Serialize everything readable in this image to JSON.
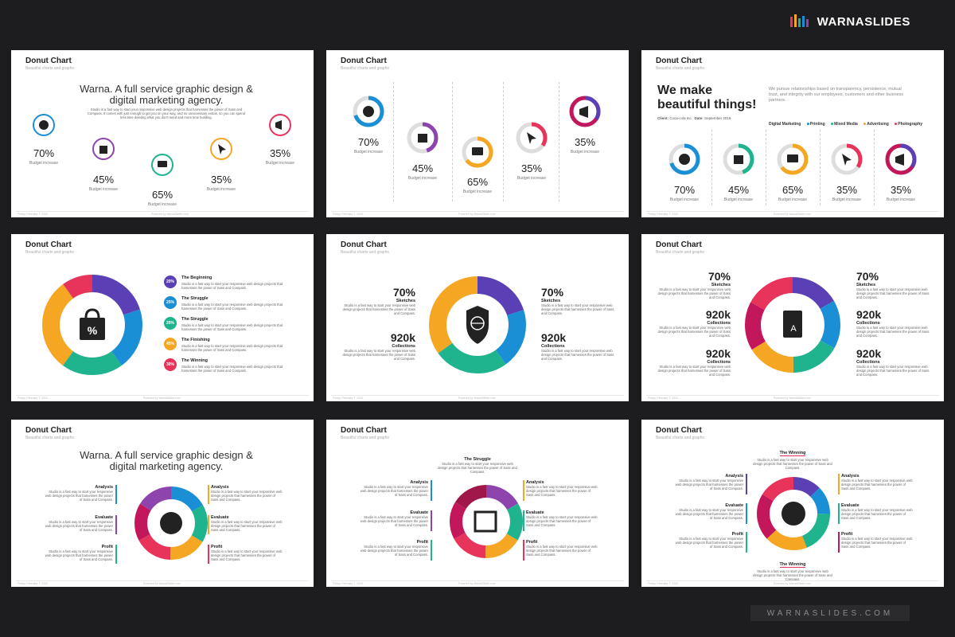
{
  "brand": {
    "name": "WARNASLIDES",
    "footer": "WARNASLIDES.COM"
  },
  "common": {
    "title": "Donut Chart",
    "subtitle": "Beautiful charts and graphs",
    "date": "Friday, February 7, 2020",
    "credit": "Powered by WarnaSlides.com"
  },
  "colors": {
    "blue": "#1a8fd6",
    "indigo": "#5b3fb5",
    "green": "#1fb38e",
    "orange": "#f5a623",
    "red": "#e8345b",
    "magenta": "#c2185b",
    "purple": "#8e44ad",
    "gray": "#bcbcbc"
  },
  "s1": {
    "heading": "Warna. A full service graphic design & digital marketing agency.",
    "body": "Studio is a fast way to start your responsive web design projects that harnesses the power of Sass and Compass. It comes with just enough to get you on your way, and no unnecessary extras, so you can spend less time deleting what you don't need and more time building.",
    "items": [
      {
        "pct": "70%",
        "cap": "Budget increase"
      },
      {
        "pct": "45%",
        "cap": "Budget increase"
      },
      {
        "pct": "65%",
        "cap": "Budget increase"
      },
      {
        "pct": "35%",
        "cap": "Budget increase"
      },
      {
        "pct": "35%",
        "cap": "Budget increase"
      }
    ]
  },
  "s2": {
    "items": [
      {
        "pct": "70%",
        "cap": "Budget increase"
      },
      {
        "pct": "45%",
        "cap": "Budget increase"
      },
      {
        "pct": "65%",
        "cap": "Budget increase"
      },
      {
        "pct": "35%",
        "cap": "Budget increase"
      },
      {
        "pct": "35%",
        "cap": "Budget increase"
      }
    ]
  },
  "s3": {
    "heading": "We make beautiful things!",
    "body": "We pursue relationships based on transparency, persistence, mutual trust, and integrity with our employees, customers and other business partners.",
    "client_label": "Client:",
    "client": "Coca-cola Inc.",
    "date_label": "Date:",
    "date": "September 2019",
    "tags": [
      "Digital Marketing",
      "Printing",
      "Mixed Media",
      "Advertising",
      "Photography"
    ],
    "items": [
      {
        "pct": "70%",
        "cap": "Budget increase"
      },
      {
        "pct": "45%",
        "cap": "Budget increase"
      },
      {
        "pct": "65%",
        "cap": "Budget increase"
      },
      {
        "pct": "35%",
        "cap": "Budget increase"
      },
      {
        "pct": "35%",
        "cap": "Budget increase"
      }
    ]
  },
  "s4": {
    "legend": [
      {
        "pct": "20%",
        "label": "The Beginning"
      },
      {
        "pct": "25%",
        "label": "The Struggle"
      },
      {
        "pct": "20%",
        "label": "The Struggle"
      },
      {
        "pct": "45%",
        "label": "The Finishing"
      },
      {
        "pct": "30%",
        "label": "The Winning"
      }
    ],
    "desc": "Studio is a fast way to start your responsive web design projects that harnesses the power of Sass and Compass."
  },
  "s5": {
    "stats": [
      {
        "v": "70%",
        "l": "Sketches"
      },
      {
        "v": "920k",
        "l": "Collections"
      },
      {
        "v": "70%",
        "l": "Sketches"
      },
      {
        "v": "920k",
        "l": "Collections"
      }
    ],
    "desc": "Studio is a fast way to start your responsive web design projects that harnesses the power of Sass and Compass."
  },
  "s6": {
    "stats": [
      {
        "v": "70%",
        "l": "Sketches"
      },
      {
        "v": "920k",
        "l": "Collections"
      },
      {
        "v": "920k",
        "l": "Collections"
      },
      {
        "v": "70%",
        "l": "Sketches"
      },
      {
        "v": "920k",
        "l": "Collections"
      },
      {
        "v": "920k",
        "l": "Collections"
      }
    ],
    "desc": "Studio is a fast way to start your responsive web design projects that harnesses the power of Sass and Compass."
  },
  "s7": {
    "heading": "Warna. A full service graphic design & digital marketing agency.",
    "labels": [
      "Analysis",
      "Evaluate",
      "Profit",
      "Analysis",
      "Evaluate",
      "Profit"
    ],
    "desc": "Studio is a fast way to start your responsive web design projects that harnesses the power of Sass and Compass."
  },
  "s8": {
    "top": "The Struggle",
    "labels": [
      "Analysis",
      "Evaluate",
      "Profit",
      "Analysis",
      "Evaluate",
      "Profit"
    ],
    "desc": "Studio is a fast way to start your responsive web design projects that harnesses the power of Sass and Compass."
  },
  "s9": {
    "top": "The Winning",
    "bottom": "The Winning",
    "labels": [
      "Analysis",
      "Evaluate",
      "Profit",
      "Analysis",
      "Evaluate",
      "Profit"
    ],
    "desc": "Studio is a fast way to start your responsive web design projects that harnesses the power of Sass and Compass."
  }
}
